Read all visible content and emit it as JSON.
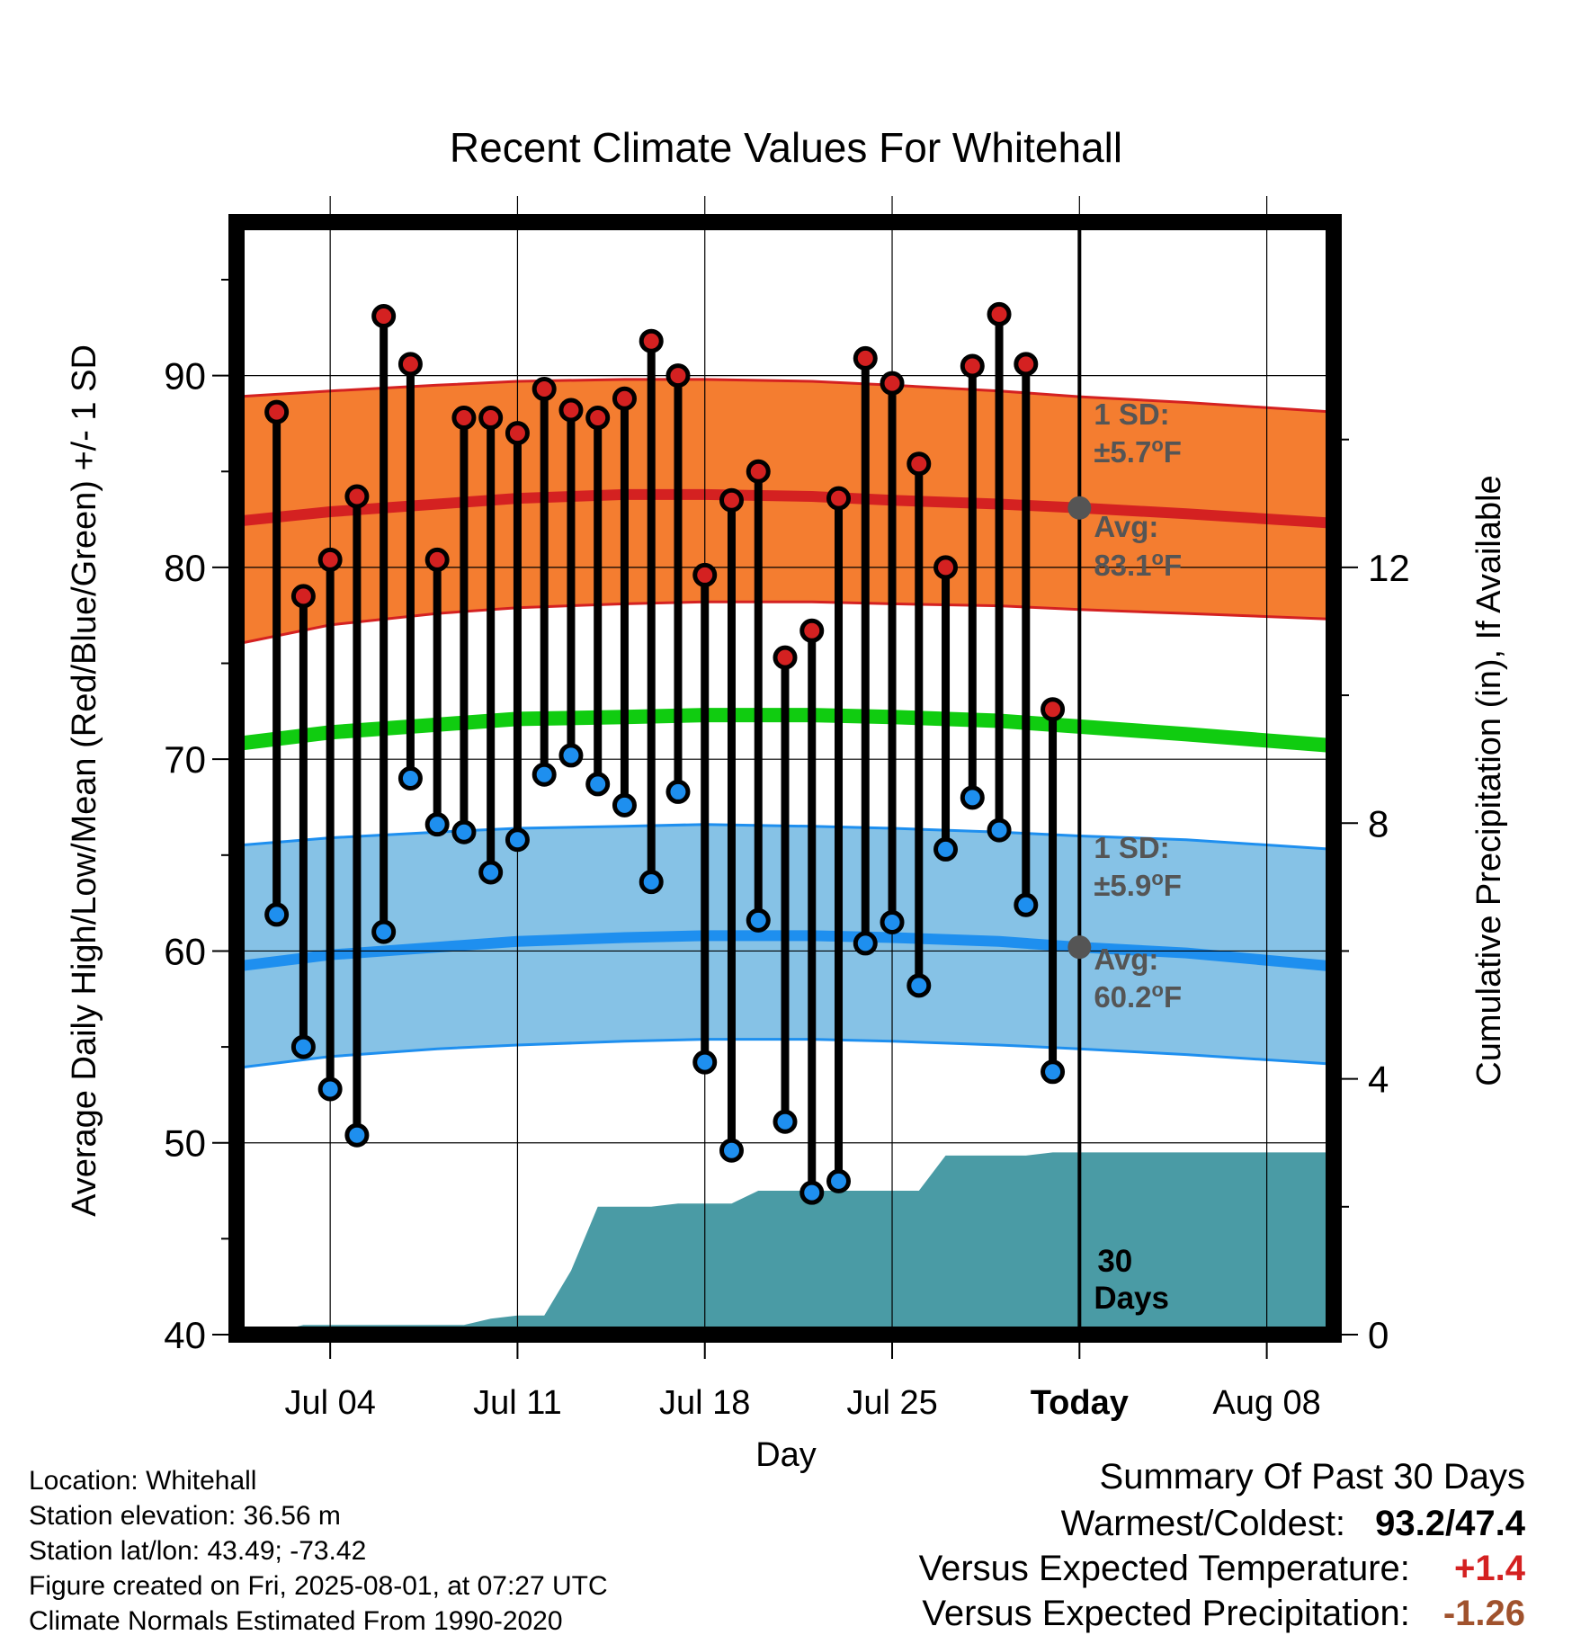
{
  "chart_data": {
    "type": "bar",
    "title": "Recent Climate Values For Whitehall",
    "xlabel": "Day",
    "ylabel": "Average Daily High/Low/Mean (Red/Blue/Green) +/- 1 SD",
    "y2label": "Cumulative Precipitation (in), If Available",
    "x_ticks": [
      "Jul 04",
      "Jul 11",
      "Jul 18",
      "Jul 25",
      "Today",
      "Aug 08"
    ],
    "x_tick_days": [
      4,
      11,
      18,
      25,
      32,
      39
    ],
    "today_day": 32,
    "xlim_days": [
      0.5,
      41.5
    ],
    "ylim": [
      40,
      98
    ],
    "y_ticks": [
      40,
      50,
      60,
      70,
      80,
      90
    ],
    "y2lim": [
      0,
      17.4
    ],
    "y2_ticks": [
      0,
      4,
      8,
      12
    ],
    "grid": true,
    "days": [
      2,
      3,
      4,
      5,
      6,
      7,
      8,
      9,
      10,
      11,
      12,
      13,
      14,
      15,
      16,
      17,
      18,
      19,
      20,
      21,
      22,
      23,
      24,
      25,
      26,
      27,
      28,
      29,
      30,
      31
    ],
    "series": [
      {
        "name": "High",
        "color": "#d42121",
        "values": [
          88.1,
          78.5,
          80.4,
          83.7,
          93.1,
          90.6,
          80.4,
          87.8,
          87.8,
          87.0,
          89.3,
          88.2,
          87.8,
          88.8,
          91.8,
          90.0,
          79.6,
          83.5,
          85.0,
          75.3,
          76.7,
          83.6,
          90.9,
          89.6,
          85.4,
          80.0,
          90.5,
          93.2,
          90.6,
          72.6
        ]
      },
      {
        "name": "Low",
        "color": "#1e8fef",
        "values": [
          61.9,
          55.0,
          52.8,
          50.4,
          61.0,
          69.0,
          66.6,
          66.2,
          64.1,
          65.8,
          69.2,
          70.2,
          68.7,
          67.6,
          63.6,
          68.3,
          54.2,
          49.6,
          61.6,
          51.1,
          47.4,
          48.0,
          60.4,
          61.5,
          58.2,
          65.3,
          68.0,
          66.3,
          62.4,
          53.7
        ]
      }
    ],
    "normals": {
      "days": [
        0.5,
        4,
        8,
        11,
        15,
        18,
        22,
        25,
        29,
        32,
        36,
        41.5
      ],
      "high_avg": [
        82.4,
        82.9,
        83.3,
        83.6,
        83.8,
        83.8,
        83.7,
        83.5,
        83.3,
        83.1,
        82.8,
        82.3
      ],
      "high_lo": [
        76.0,
        77.0,
        77.6,
        77.9,
        78.1,
        78.2,
        78.2,
        78.1,
        78.0,
        77.8,
        77.6,
        77.3
      ],
      "high_hi": [
        88.9,
        89.2,
        89.5,
        89.7,
        89.8,
        89.8,
        89.7,
        89.5,
        89.2,
        88.9,
        88.6,
        88.1
      ],
      "low_avg": [
        59.2,
        59.8,
        60.2,
        60.5,
        60.7,
        60.8,
        60.8,
        60.7,
        60.5,
        60.2,
        59.9,
        59.2
      ],
      "low_lo": [
        53.9,
        54.5,
        54.9,
        55.1,
        55.3,
        55.4,
        55.4,
        55.3,
        55.1,
        54.9,
        54.6,
        54.1
      ],
      "low_hi": [
        65.5,
        65.9,
        66.2,
        66.4,
        66.5,
        66.6,
        66.5,
        66.4,
        66.2,
        66.0,
        65.8,
        65.3
      ],
      "mean": [
        70.8,
        71.4,
        71.8,
        72.1,
        72.2,
        72.3,
        72.3,
        72.2,
        72.0,
        71.7,
        71.3,
        70.7
      ]
    },
    "precip": {
      "days": [
        0.5,
        1.5,
        2.5,
        3,
        4,
        5,
        6,
        7,
        8,
        9,
        10,
        11,
        12,
        13,
        14,
        15,
        16,
        17,
        18,
        19,
        20,
        21,
        22,
        23,
        24,
        25,
        26,
        27,
        28,
        29,
        30,
        31,
        32,
        33,
        41.5
      ],
      "values": [
        0.03,
        0.03,
        0.1,
        0.15,
        0.15,
        0.15,
        0.15,
        0.15,
        0.15,
        0.15,
        0.25,
        0.3,
        0.3,
        1.0,
        2.0,
        2.0,
        2.0,
        2.05,
        2.05,
        2.05,
        2.25,
        2.25,
        2.25,
        2.25,
        2.25,
        2.25,
        2.25,
        2.8,
        2.8,
        2.8,
        2.8,
        2.85,
        2.85,
        2.85,
        2.85
      ]
    },
    "annotations": {
      "high_sd_label": "1 SD:",
      "high_sd_value": "±5.7",
      "high_avg_label": "Avg:",
      "high_avg_value": "83.1",
      "low_sd_label": "1 SD:",
      "low_sd_value": "±5.9",
      "low_avg_label": "Avg:",
      "low_avg_value": "60.2",
      "deg_symbol": "o",
      "unit": "F",
      "days_count": "30",
      "days_word": "Days",
      "today_high_avg": 83.1,
      "today_low_avg": 60.2
    },
    "colors": {
      "high_band": "#f47d30",
      "high_line": "#d42121",
      "low_band": "#86c2e6",
      "low_line": "#1e8fef",
      "mean_line": "#10cc10",
      "precip": "#4a9ba5",
      "annotation": "#555555"
    }
  },
  "footer": {
    "location": "Location: Whitehall",
    "elevation": "Station elevation: 36.56 m",
    "latlon": "Station lat/lon: 43.49; -73.42",
    "created": "Figure created on Fri, 2025-08-01, at 07:27 UTC",
    "normals": "Climate Normals Estimated From 1990-2020"
  },
  "summary": {
    "title": "Summary Of Past 30 Days",
    "warm_cold_label": "Warmest/Coldest:",
    "warm_cold_value": "93.2/47.4",
    "temp_label": "Versus Expected Temperature:",
    "temp_value": "+1.4",
    "temp_color": "#d42121",
    "precip_label": "Versus Expected Precipitation:",
    "precip_value": "-1.26",
    "precip_color": "#a0522d"
  }
}
